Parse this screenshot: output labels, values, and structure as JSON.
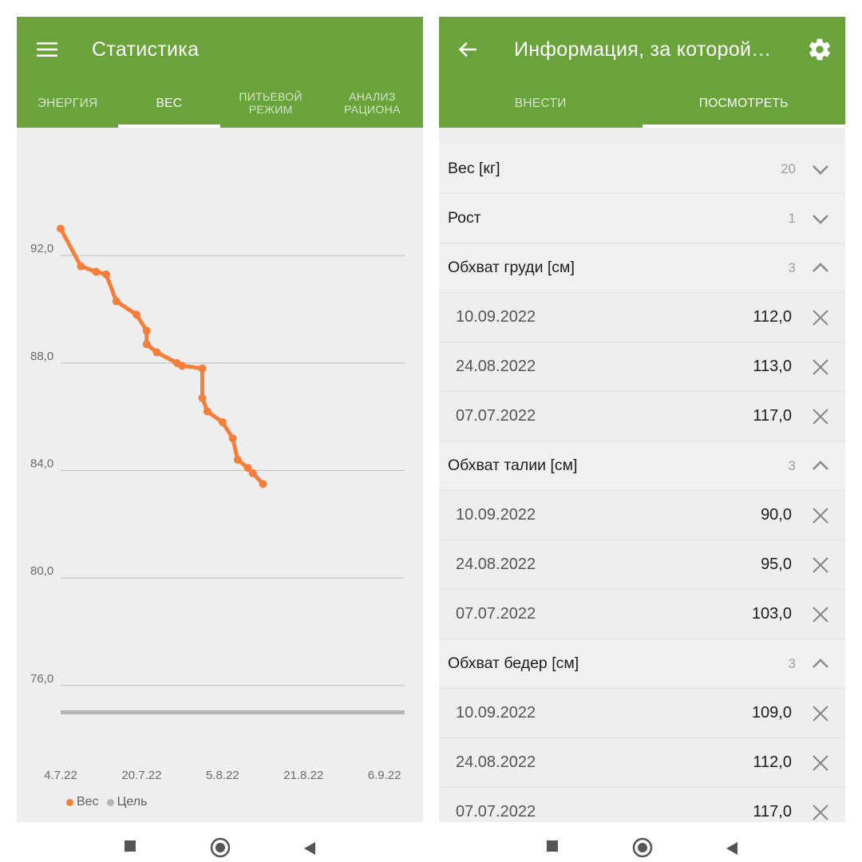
{
  "left": {
    "app_title": "Статистика",
    "menu_icon": "hamburger-menu-icon",
    "tabs": [
      {
        "label": "ЭНЕРГИЯ",
        "active": false
      },
      {
        "label": "ВЕС",
        "active": true
      },
      {
        "label": "ПИТЬЕВОЙ РЕЖИМ",
        "active": false
      },
      {
        "label": "АНАЛИЗ РАЦИОНА",
        "active": false
      }
    ],
    "legend": [
      {
        "label": "Вес",
        "color": "#f57f3a"
      },
      {
        "label": "Цель",
        "color": "#b5b5b5"
      }
    ]
  },
  "chart_data": {
    "type": "line",
    "title": "",
    "xlabel": "",
    "ylabel": "",
    "y_ticks": [
      "76,0",
      "80,0",
      "84,0",
      "88,0",
      "92,0"
    ],
    "y_tick_values": [
      76,
      80,
      84,
      88,
      92
    ],
    "x_ticks": [
      "4.7.22",
      "20.7.22",
      "5.8.22",
      "21.8.22",
      "6.9.22"
    ],
    "x_tick_dates": [
      "2022-07-04",
      "2022-07-20",
      "2022-08-05",
      "2022-08-21",
      "2022-09-06"
    ],
    "xlim": [
      "2022-07-04",
      "2022-09-10"
    ],
    "ylim": [
      73.5,
      94.5
    ],
    "grid": true,
    "legend_position": "bottom-left",
    "series": [
      {
        "name": "Вес",
        "color": "#f57f3a",
        "points": [
          {
            "x": "2022-07-04",
            "y": 93.0
          },
          {
            "x": "2022-07-08",
            "y": 91.6
          },
          {
            "x": "2022-07-11",
            "y": 91.4
          },
          {
            "x": "2022-07-13",
            "y": 91.3
          },
          {
            "x": "2022-07-15",
            "y": 90.3
          },
          {
            "x": "2022-07-19",
            "y": 89.8
          },
          {
            "x": "2022-07-21",
            "y": 89.2
          },
          {
            "x": "2022-07-21",
            "y": 88.7
          },
          {
            "x": "2022-07-23",
            "y": 88.4
          },
          {
            "x": "2022-07-27",
            "y": 88.0
          },
          {
            "x": "2022-07-28",
            "y": 87.9
          },
          {
            "x": "2022-08-01",
            "y": 87.8
          },
          {
            "x": "2022-08-01",
            "y": 86.7
          },
          {
            "x": "2022-08-02",
            "y": 86.2
          },
          {
            "x": "2022-08-05",
            "y": 85.8
          },
          {
            "x": "2022-08-07",
            "y": 85.2
          },
          {
            "x": "2022-08-08",
            "y": 84.4
          },
          {
            "x": "2022-08-10",
            "y": 84.1
          },
          {
            "x": "2022-08-11",
            "y": 83.9
          },
          {
            "x": "2022-08-13",
            "y": 83.5
          }
        ]
      },
      {
        "name": "Цель",
        "color": "#b5b5b5",
        "points": [
          {
            "x": "2022-07-04",
            "y": 75.0
          },
          {
            "x": "2022-09-10",
            "y": 75.0
          }
        ]
      }
    ]
  },
  "right": {
    "app_title": "Информация, за которой…",
    "back_icon": "arrow-back-icon",
    "settings_icon": "gear-icon",
    "tabs": [
      {
        "label": "ВНЕСТИ",
        "active": false
      },
      {
        "label": "ПОСМОТРЕТЬ",
        "active": true
      }
    ],
    "groups": [
      {
        "label": "Вес [кг]",
        "count": "20",
        "expanded": false,
        "entries": []
      },
      {
        "label": "Рост",
        "count": "1",
        "expanded": false,
        "entries": []
      },
      {
        "label": "Обхват груди [см]",
        "count": "3",
        "expanded": true,
        "entries": [
          {
            "date": "10.09.2022",
            "value": "112,0"
          },
          {
            "date": "24.08.2022",
            "value": "113,0"
          },
          {
            "date": "07.07.2022",
            "value": "117,0"
          }
        ]
      },
      {
        "label": "Обхват талии [см]",
        "count": "3",
        "expanded": true,
        "entries": [
          {
            "date": "10.09.2022",
            "value": "90,0"
          },
          {
            "date": "24.08.2022",
            "value": "95,0"
          },
          {
            "date": "07.07.2022",
            "value": "103,0"
          }
        ]
      },
      {
        "label": "Обхват бедер [см]",
        "count": "3",
        "expanded": true,
        "entries": [
          {
            "date": "10.09.2022",
            "value": "109,0"
          },
          {
            "date": "24.08.2022",
            "value": "112,0"
          },
          {
            "date": "07.07.2022",
            "value": "117,0"
          }
        ]
      }
    ]
  },
  "theme": {
    "primary": "#6aa23c",
    "accent": "#f57f3a",
    "background": "#eeeeee"
  }
}
